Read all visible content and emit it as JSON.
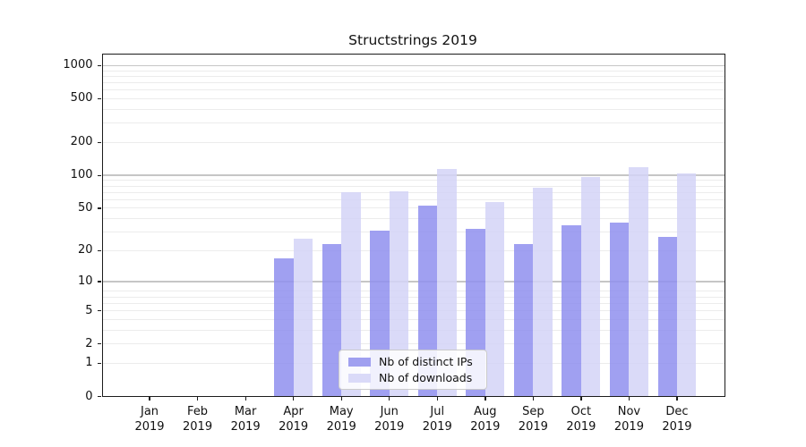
{
  "chart_data": {
    "type": "bar",
    "title": "Structstrings 2019",
    "categories": [
      "Jan 2019",
      "Feb 2019",
      "Mar 2019",
      "Apr 2019",
      "May 2019",
      "Jun 2019",
      "Jul 2019",
      "Aug 2019",
      "Sep 2019",
      "Oct 2019",
      "Nov 2019",
      "Dec 2019"
    ],
    "x_tick_line1": [
      "Jan",
      "Feb",
      "Mar",
      "Apr",
      "May",
      "Jun",
      "Jul",
      "Aug",
      "Sep",
      "Oct",
      "Nov",
      "Dec"
    ],
    "x_tick_line2": "2019",
    "series": [
      {
        "name": "Nb of distinct IPs",
        "color": "#8f8fee",
        "swatch": "#a0a0f0",
        "values": [
          0,
          0,
          0,
          17,
          23,
          31,
          53,
          32,
          23,
          35,
          37,
          27
        ]
      },
      {
        "name": "Nb of downloads",
        "color": "#d3d3f7",
        "swatch": "#dadaf8",
        "values": [
          0,
          0,
          0,
          26,
          70,
          72,
          114,
          57,
          77,
          97,
          118,
          104
        ]
      }
    ],
    "y_axis": {
      "scale": "log10(value+1)",
      "tick_labels": [
        "0",
        "1",
        "2",
        "5",
        "10",
        "20",
        "50",
        "100",
        "200",
        "500",
        "1000"
      ],
      "tick_values": [
        0,
        1,
        2,
        5,
        10,
        20,
        50,
        100,
        200,
        500,
        1000
      ],
      "range_top": 1297,
      "major_gridlines": [
        10,
        100,
        1000
      ],
      "minor_gridlines": [
        1,
        2,
        3,
        4,
        5,
        6,
        7,
        8,
        20,
        30,
        40,
        50,
        60,
        70,
        80,
        90,
        200,
        300,
        400,
        500,
        600,
        700,
        800,
        900
      ]
    },
    "legend_position": "lower center",
    "grid": "on",
    "background_color": "#ffffff"
  }
}
